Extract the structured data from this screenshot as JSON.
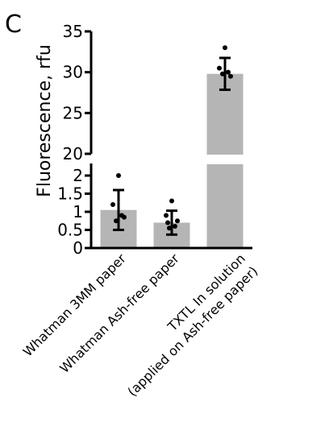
{
  "panel_label": "C",
  "chart_data": {
    "type": "bar",
    "title": "",
    "ylabel": "Fluorescence, rfu",
    "xlabel": "",
    "categories": [
      "Whatman 3MM paper",
      "Whatman Ash-free paper",
      [
        "TXTL In solution",
        "(applied on Ash-free paper)"
      ]
    ],
    "means": [
      1.05,
      0.7,
      29.8
    ],
    "sd": [
      0.55,
      0.33,
      1.95
    ],
    "points": [
      [
        2.0,
        1.2,
        0.85,
        0.75,
        0.9
      ],
      [
        1.3,
        0.9,
        0.75,
        0.55,
        0.6,
        0.7
      ],
      [
        33.0,
        30.5,
        29.5,
        29.8,
        30.0
      ]
    ],
    "y_axis_broken": true,
    "lower_segment": {
      "ylim": [
        0,
        2.2
      ],
      "ticks": [
        0,
        0.5,
        1,
        1.5,
        2
      ],
      "tick_labels": [
        "0",
        "0.5",
        "1",
        "1.5",
        "2"
      ]
    },
    "upper_segment": {
      "ylim": [
        20,
        35
      ],
      "ticks": [
        20,
        25,
        30,
        35
      ],
      "tick_labels": [
        "20",
        "25",
        "30",
        "35"
      ]
    },
    "colors": {
      "bar": "#b5b5b5",
      "points": "#000000",
      "error_bars": "#000000"
    },
    "grid": false,
    "legend": "none"
  }
}
